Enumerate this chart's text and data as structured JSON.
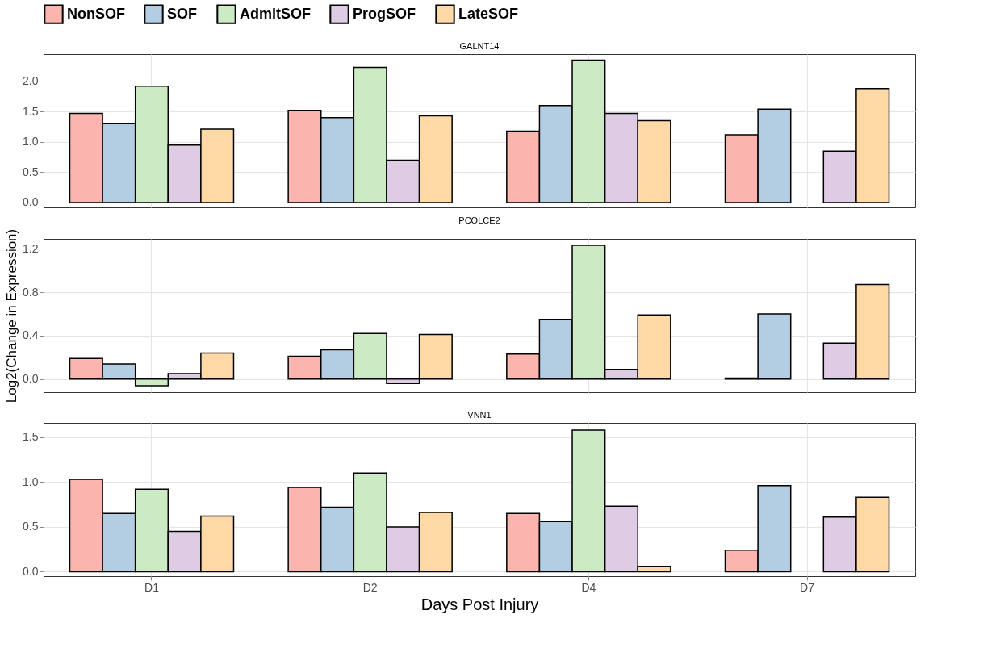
{
  "chart_data": [
    {
      "type": "bar",
      "title": "GALNT14",
      "categories": [
        null,
        null,
        null,
        null
      ],
      "legend": "top",
      "grid": true,
      "tick_labels": "y",
      "ylim": [
        -0.08,
        2.45
      ],
      "yticks": [
        {
          "value": 0,
          "label": "0.0"
        },
        0.5,
        {
          "value": 1,
          "label": "1.0"
        },
        1.5,
        {
          "value": 2,
          "label": "2.0"
        }
      ],
      "series": [
        {
          "name": "NonSOF",
          "color": "#fbb4ae",
          "values": [
            1.47,
            1.52,
            1.18,
            1.12
          ]
        },
        {
          "name": "SOF",
          "color": "#b3cde3",
          "values": [
            1.3,
            1.4,
            1.6,
            1.54
          ]
        },
        {
          "name": "AdmitSOF",
          "color": "#ccebc5",
          "values": [
            1.92,
            2.23,
            2.35,
            null
          ]
        },
        {
          "name": "ProgSOF",
          "color": "#decbe4",
          "values": [
            0.95,
            0.7,
            1.47,
            0.85
          ]
        },
        {
          "name": "LateSOF",
          "color": "#fed9a6",
          "values": [
            1.21,
            1.43,
            1.35,
            1.88
          ]
        }
      ]
    },
    {
      "type": "bar",
      "title": "PCOLCE2",
      "ylabel": "Log2(Change in Expression)",
      "categories": [
        null,
        null,
        null,
        null
      ],
      "grid": true,
      "tick_labels": "y",
      "ylim": [
        -0.12,
        1.29
      ],
      "yticks": [
        {
          "value": 0,
          "label": "0.0"
        },
        0.4,
        0.8,
        1.2
      ],
      "series": [
        {
          "name": "NonSOF",
          "color": "#fbb4ae",
          "values": [
            0.19,
            0.21,
            0.23,
            0.01
          ]
        },
        {
          "name": "SOF",
          "color": "#b3cde3",
          "values": [
            0.14,
            0.27,
            0.55,
            0.6
          ]
        },
        {
          "name": "AdmitSOF",
          "color": "#ccebc5",
          "values": [
            -0.06,
            0.42,
            1.23,
            null
          ]
        },
        {
          "name": "ProgSOF",
          "color": "#decbe4",
          "values": [
            0.05,
            -0.04,
            0.09,
            0.33
          ]
        },
        {
          "name": "LateSOF",
          "color": "#fed9a6",
          "values": [
            0.24,
            0.41,
            0.59,
            0.87
          ]
        }
      ]
    },
    {
      "type": "bar",
      "title": "VNN1",
      "xlabel": "Days Post Injury",
      "categories": [
        "D1",
        "D2",
        "D4",
        "D7"
      ],
      "grid": true,
      "ylim": [
        -0.05,
        1.66
      ],
      "yticks": [
        {
          "value": 0,
          "label": "0.0"
        },
        0.5,
        {
          "value": 1,
          "label": "1.0"
        },
        1.5
      ],
      "series": [
        {
          "name": "NonSOF",
          "color": "#fbb4ae",
          "values": [
            1.03,
            0.94,
            0.65,
            0.24
          ]
        },
        {
          "name": "SOF",
          "color": "#b3cde3",
          "values": [
            0.65,
            0.72,
            0.56,
            0.96
          ]
        },
        {
          "name": "AdmitSOF",
          "color": "#ccebc5",
          "values": [
            0.92,
            1.1,
            1.58,
            null
          ]
        },
        {
          "name": "ProgSOF",
          "color": "#decbe4",
          "values": [
            0.45,
            0.5,
            0.73,
            0.61
          ]
        },
        {
          "name": "LateSOF",
          "color": "#fed9a6",
          "values": [
            0.62,
            0.66,
            0.06,
            0.83
          ]
        }
      ]
    }
  ]
}
